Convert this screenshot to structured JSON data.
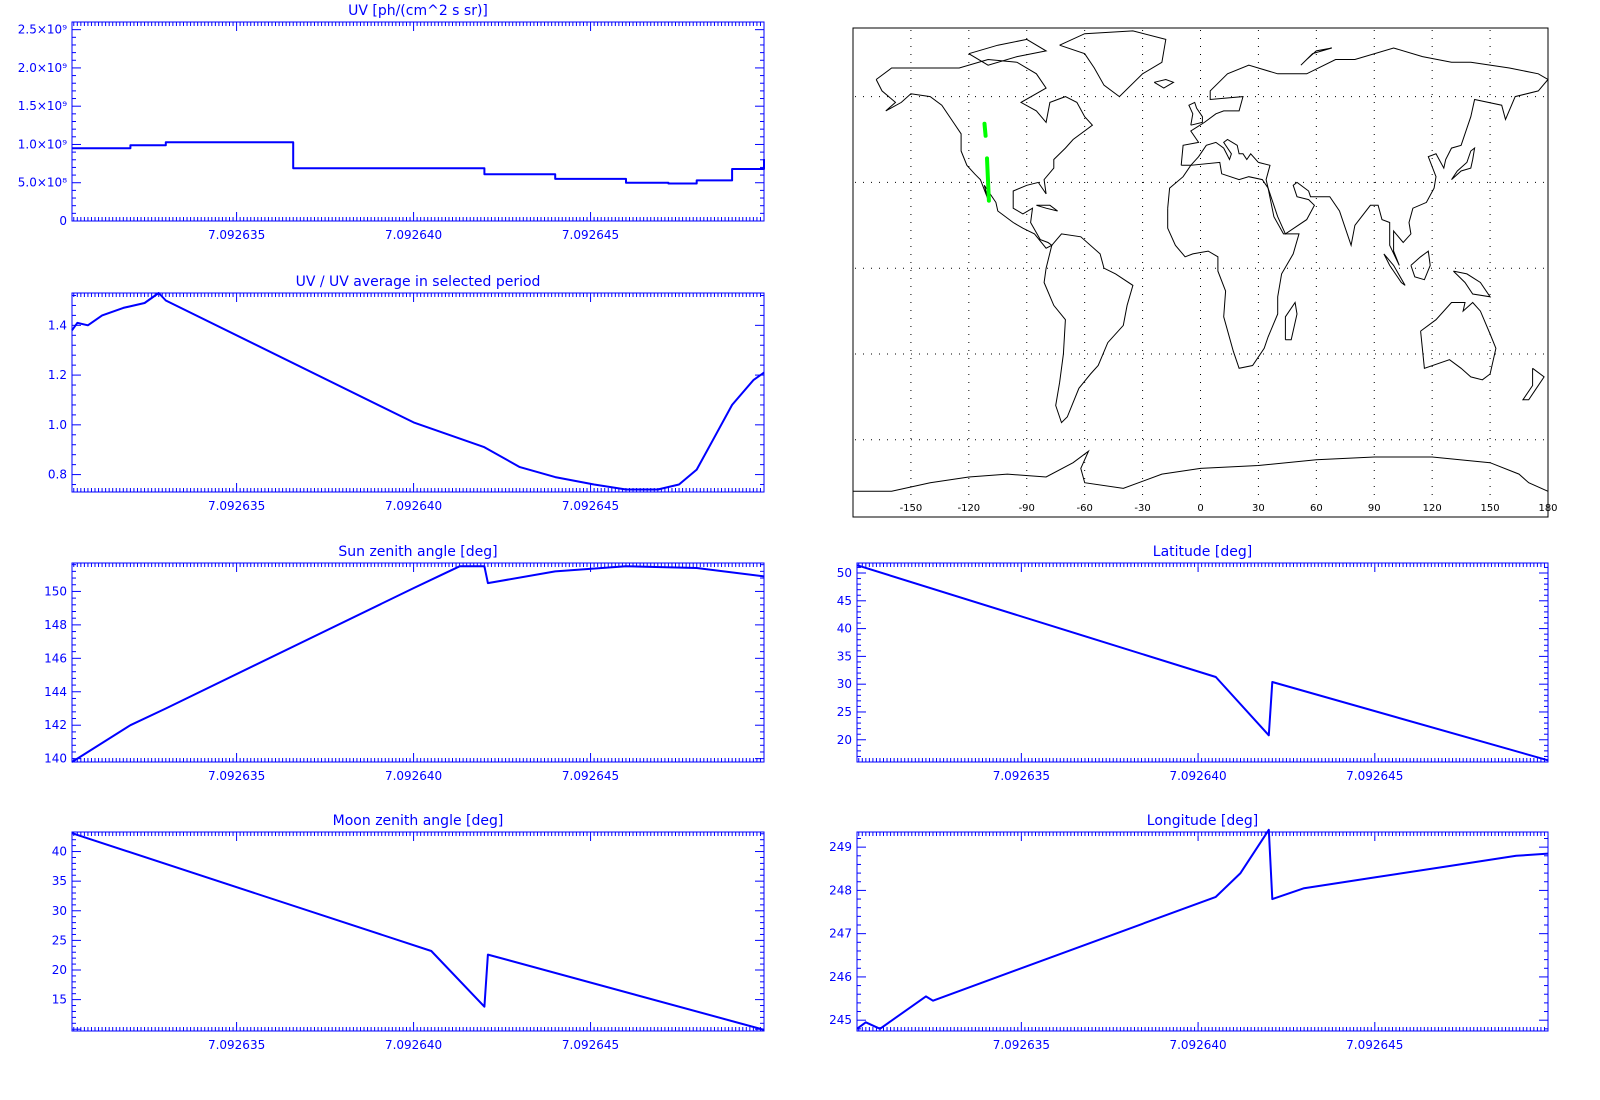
{
  "page": {
    "background": "#ffffff",
    "plot_color": "#0000ff",
    "track_color": "#00ff00",
    "map_color": "#000000"
  },
  "chart_data": [
    {
      "id": "uv",
      "type": "line",
      "title": "UV [ph/(cm^2 s sr)]",
      "xlabel": "",
      "ylabel": "",
      "xlim": [
        7.09263035,
        7.0926499
      ],
      "ylim": [
        0,
        2600000000.0
      ],
      "xticks": [
        7.092635,
        7.09264,
        7.092645
      ],
      "xtick_labels": [
        "7.092635",
        "7.092640",
        "7.092645"
      ],
      "yticks": [
        0,
        500000000.0,
        1000000000.0,
        1500000000.0,
        2000000000.0,
        2500000000.0
      ],
      "ytick_labels": [
        "0",
        "5.0×10⁸",
        "1.0×10⁹",
        "1.5×10⁹",
        "2.0×10⁹",
        "2.5×10⁹"
      ],
      "step": true,
      "series": [
        {
          "x": [
            7.09263035,
            7.092632,
            7.092633,
            7.0926366,
            7.0926366,
            7.09264,
            7.092642,
            7.092644,
            7.092646,
            7.0926472,
            7.092648,
            7.092649,
            7.0926499
          ],
          "y": [
            950000000.0,
            990000000.0,
            1030000000.0,
            1030000000.0,
            690000000.0,
            690000000.0,
            610000000.0,
            550000000.0,
            500000000.0,
            490000000.0,
            530000000.0,
            680000000.0,
            810000000.0
          ]
        }
      ]
    },
    {
      "id": "uv-ratio",
      "type": "line",
      "title": "UV / UV average in selected period",
      "xlabel": "",
      "ylabel": "",
      "xlim": [
        7.09263035,
        7.0926499
      ],
      "ylim": [
        0.73,
        1.53
      ],
      "xticks": [
        7.092635,
        7.09264,
        7.092645
      ],
      "xtick_labels": [
        "7.092635",
        "7.092640",
        "7.092645"
      ],
      "yticks": [
        0.8,
        1.0,
        1.2,
        1.4
      ],
      "ytick_labels": [
        "0.8",
        "1.0",
        "1.2",
        "1.4"
      ],
      "series": [
        {
          "x": [
            7.09263035,
            7.0926305,
            7.0926308,
            7.0926312,
            7.0926318,
            7.0926324,
            7.0926328,
            7.092633,
            7.09264,
            7.092642,
            7.092643,
            7.092644,
            7.0926451,
            7.092646,
            7.0926469,
            7.0926475,
            7.092648,
            7.0926485,
            7.092649,
            7.0926496,
            7.0926499
          ],
          "y": [
            1.38,
            1.41,
            1.4,
            1.44,
            1.47,
            1.49,
            1.53,
            1.5,
            1.01,
            0.91,
            0.83,
            0.79,
            0.76,
            0.74,
            0.74,
            0.76,
            0.82,
            0.95,
            1.08,
            1.18,
            1.21
          ]
        }
      ]
    },
    {
      "id": "sun-zenith",
      "type": "line",
      "title": "Sun zenith angle [deg]",
      "xlabel": "",
      "ylabel": "",
      "xlim": [
        7.09263035,
        7.0926499
      ],
      "ylim": [
        139.8,
        151.7
      ],
      "xticks": [
        7.092635,
        7.09264,
        7.092645
      ],
      "xtick_labels": [
        "7.092635",
        "7.092640",
        "7.092645"
      ],
      "yticks": [
        140,
        142,
        144,
        146,
        148,
        150
      ],
      "ytick_labels": [
        "140",
        "142",
        "144",
        "146",
        "148",
        "150"
      ],
      "series": [
        {
          "x": [
            7.09263035,
            7.092632,
            7.092633,
            7.09264,
            7.0926408,
            7.0926413,
            7.092642,
            7.0926421,
            7.092644,
            7.092646,
            7.092648,
            7.0926499
          ],
          "y": [
            139.8,
            142.0,
            143.0,
            150.2,
            151.0,
            151.5,
            151.5,
            150.5,
            151.2,
            151.5,
            151.4,
            150.9
          ]
        }
      ]
    },
    {
      "id": "moon-zenith",
      "type": "line",
      "title": "Moon zenith angle [deg]",
      "xlabel": "",
      "ylabel": "",
      "xlim": [
        7.09263035,
        7.0926499
      ],
      "ylim": [
        9.7,
        43.3
      ],
      "xticks": [
        7.092635,
        7.09264,
        7.092645
      ],
      "xtick_labels": [
        "7.092635",
        "7.092640",
        "7.092645"
      ],
      "yticks": [
        15,
        20,
        25,
        30,
        35,
        40
      ],
      "ytick_labels": [
        "15",
        "20",
        "25",
        "30",
        "35",
        "40"
      ],
      "series": [
        {
          "x": [
            7.09263035,
            7.0926405,
            7.092642,
            7.0926421,
            7.0926499
          ],
          "y": [
            43.1,
            23.2,
            13.8,
            22.6,
            9.9
          ]
        }
      ]
    },
    {
      "id": "latitude",
      "type": "line",
      "title": "Latitude [deg]",
      "xlabel": "",
      "ylabel": "",
      "xlim": [
        7.09263035,
        7.0926499
      ],
      "ylim": [
        16.0,
        51.8
      ],
      "xticks": [
        7.092635,
        7.09264,
        7.092645
      ],
      "xtick_labels": [
        "7.092635",
        "7.092640",
        "7.092645"
      ],
      "yticks": [
        20,
        25,
        30,
        35,
        40,
        45,
        50
      ],
      "ytick_labels": [
        "20",
        "25",
        "30",
        "35",
        "40",
        "45",
        "50"
      ],
      "series": [
        {
          "x": [
            7.09263035,
            7.0926405,
            7.092642,
            7.0926421,
            7.0926499
          ],
          "y": [
            51.4,
            31.3,
            20.8,
            30.4,
            16.3
          ]
        }
      ]
    },
    {
      "id": "longitude",
      "type": "line",
      "title": "Longitude [deg]",
      "xlabel": "",
      "ylabel": "",
      "xlim": [
        7.09263035,
        7.0926499
      ],
      "ylim": [
        244.75,
        249.35
      ],
      "xticks": [
        7.092635,
        7.09264,
        7.092645
      ],
      "xtick_labels": [
        "7.092635",
        "7.092640",
        "7.092645"
      ],
      "yticks": [
        245,
        246,
        247,
        248,
        249
      ],
      "ytick_labels": [
        "245",
        "246",
        "247",
        "248",
        "249"
      ],
      "series": [
        {
          "x": [
            7.09263035,
            7.0926306,
            7.092631,
            7.0926323,
            7.0926325,
            7.0926405,
            7.0926412,
            7.092642,
            7.0926421,
            7.092643,
            7.092645,
            7.092647,
            7.092649,
            7.0926499
          ],
          "y": [
            244.8,
            244.95,
            244.8,
            245.55,
            245.45,
            247.85,
            248.4,
            249.4,
            247.8,
            248.05,
            248.3,
            248.55,
            248.8,
            248.85
          ]
        }
      ]
    }
  ],
  "map": {
    "xticks": [
      -150,
      -120,
      -90,
      -60,
      -30,
      0,
      30,
      60,
      90,
      120,
      150,
      180
    ],
    "xtick_labels": [
      "-150",
      "-120",
      "-90",
      "-60",
      "-30",
      "0",
      "30",
      "60",
      "90",
      "120",
      "150",
      "180"
    ],
    "lat_gridlines": [
      60,
      30,
      0,
      -30,
      -60
    ],
    "track_segments": [
      [
        [
          -111.9,
          50.5
        ],
        [
          -111.3,
          46.3
        ]
      ],
      [
        [
          -110.6,
          38.4
        ],
        [
          -109.6,
          23.6
        ]
      ]
    ]
  }
}
